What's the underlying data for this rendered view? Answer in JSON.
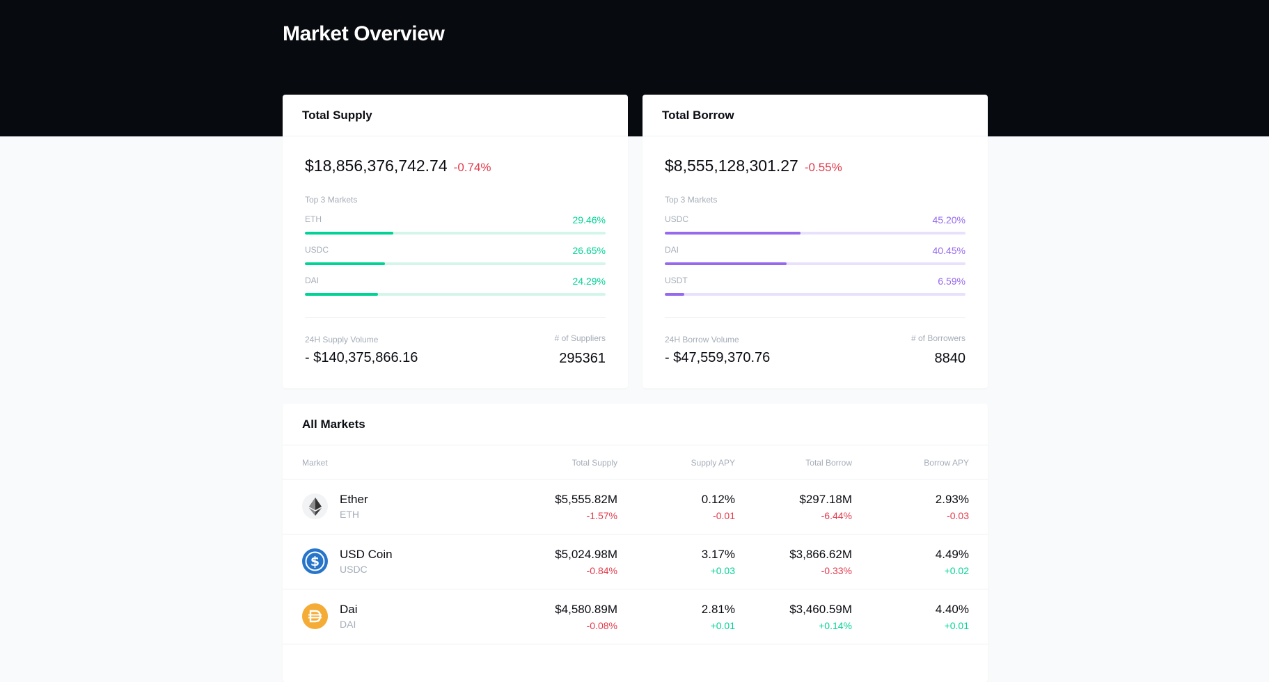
{
  "page": {
    "title": "Market Overview"
  },
  "supply": {
    "title": "Total Supply",
    "total": "$18,856,376,742.74",
    "change": "-0.74%",
    "top_label": "Top 3 Markets",
    "markets": [
      {
        "name": "ETH",
        "pct": "29.46%",
        "share": 29.46
      },
      {
        "name": "USDC",
        "pct": "26.65%",
        "share": 26.65
      },
      {
        "name": "DAI",
        "pct": "24.29%",
        "share": 24.29
      }
    ],
    "volume_label": "24H Supply Volume",
    "volume": "- $140,375,866.16",
    "count_label": "# of Suppliers",
    "count": "295361"
  },
  "borrow": {
    "title": "Total Borrow",
    "total": "$8,555,128,301.27",
    "change": "-0.55%",
    "top_label": "Top 3 Markets",
    "markets": [
      {
        "name": "USDC",
        "pct": "45.20%",
        "share": 45.2
      },
      {
        "name": "DAI",
        "pct": "40.45%",
        "share": 40.45
      },
      {
        "name": "USDT",
        "pct": "6.59%",
        "share": 6.59
      }
    ],
    "volume_label": "24H Borrow Volume",
    "volume": "- $47,559,370.76",
    "count_label": "# of Borrowers",
    "count": "8840"
  },
  "markets": {
    "title": "All Markets",
    "columns": [
      "Market",
      "Total Supply",
      "Supply APY",
      "Total Borrow",
      "Borrow APY"
    ],
    "rows": [
      {
        "name": "Ether",
        "symbol": "ETH",
        "icon": "ether-icon",
        "total_supply": "$5,555.82M",
        "total_supply_change": "-1.57%",
        "supply_apy": "0.12%",
        "supply_apy_change": "-0.01",
        "total_borrow": "$297.18M",
        "total_borrow_change": "-6.44%",
        "borrow_apy": "2.93%",
        "borrow_apy_change": "-0.03"
      },
      {
        "name": "USD Coin",
        "symbol": "USDC",
        "icon": "usdc-icon",
        "total_supply": "$5,024.98M",
        "total_supply_change": "-0.84%",
        "supply_apy": "3.17%",
        "supply_apy_change": "+0.03",
        "total_borrow": "$3,866.62M",
        "total_borrow_change": "-0.33%",
        "borrow_apy": "4.49%",
        "borrow_apy_change": "+0.02"
      },
      {
        "name": "Dai",
        "symbol": "DAI",
        "icon": "dai-icon",
        "total_supply": "$4,580.89M",
        "total_supply_change": "-0.08%",
        "supply_apy": "2.81%",
        "supply_apy_change": "+0.01",
        "total_borrow": "$3,460.59M",
        "total_borrow_change": "+0.14%",
        "borrow_apy": "4.40%",
        "borrow_apy_change": "+0.01"
      }
    ]
  },
  "colors": {
    "header_bg": "#070a0e",
    "page_bg": "#f9fafb",
    "supply_accent": "#00d395",
    "borrow_accent": "#9669ed",
    "negative": "#e23a4b",
    "positive": "#00d395",
    "usdc_blue": "#2775ca",
    "dai_yellow": "#f5ac37"
  }
}
